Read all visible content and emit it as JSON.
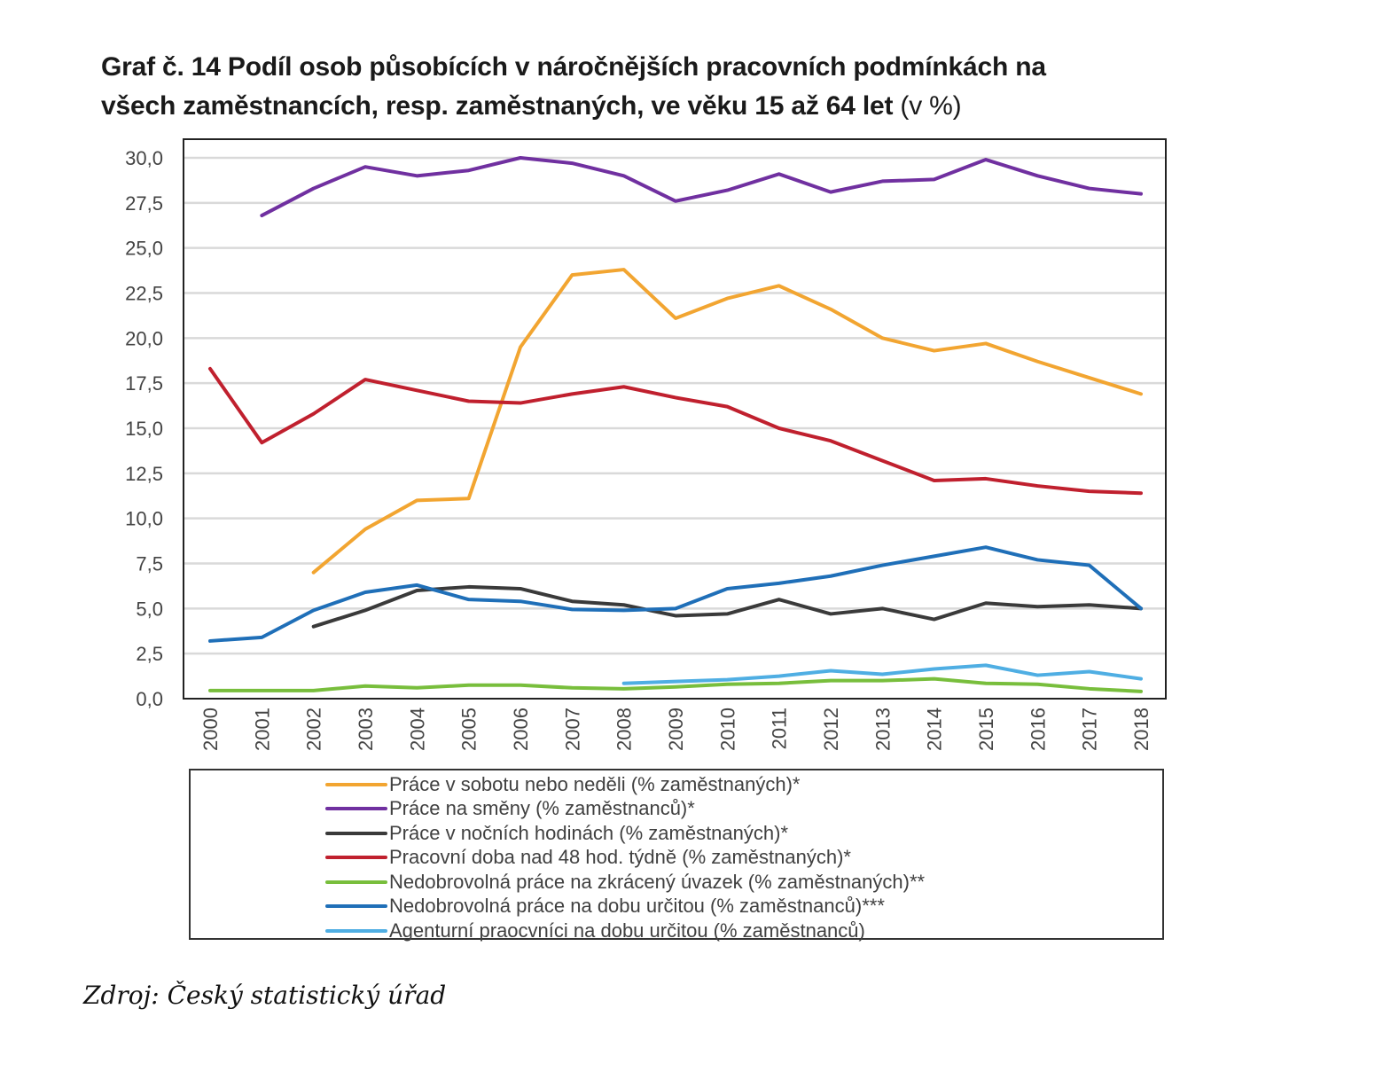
{
  "title": {
    "line1": "Graf č. 14  Podíl osob působících v náročnějších pracovních podmínkách na",
    "line2_bold": "všech zaměstnancích, resp. zaměstnaných, ve věku 15 až 64 let",
    "line2_unit": "(v %)"
  },
  "source": "Zdroj: Český statistický úřad",
  "chart_data": {
    "type": "line",
    "title": "Graf č. 14  Podíl osob působících v náročnějších pracovních podmínkách na všech zaměstnancích, resp. zaměstnaných, ve věku 15 až 64 let (v %)",
    "xlabel": "",
    "ylabel": "",
    "x": [
      "2000",
      "2001",
      "2002",
      "2003",
      "2004",
      "2005",
      "2006",
      "2007",
      "2008",
      "2009",
      "2010",
      "2011",
      "2012",
      "2013",
      "2014",
      "2015",
      "2016",
      "2017",
      "2018"
    ],
    "ylim": [
      0,
      30
    ],
    "yticks": [
      "0,0",
      "2,5",
      "5,0",
      "7,5",
      "10,0",
      "12,5",
      "15,0",
      "17,5",
      "20,0",
      "22,5",
      "25,0",
      "27,5",
      "30,0"
    ],
    "ytick_values": [
      0,
      2.5,
      5,
      7.5,
      10,
      12.5,
      15,
      17.5,
      20,
      22.5,
      25,
      27.5,
      30
    ],
    "grid": "horizontal",
    "legend_position": "bottom",
    "series": [
      {
        "name": "Práce v sobotu nebo neděli (% zaměstnaných)*",
        "color": "#F2A531",
        "values": [
          null,
          null,
          7.0,
          9.4,
          11.0,
          11.1,
          19.5,
          23.5,
          23.8,
          21.1,
          22.2,
          22.9,
          21.6,
          20.0,
          19.3,
          19.7,
          18.7,
          17.8,
          16.9
        ]
      },
      {
        "name": "Práce na směny (% zaměstnanců)*",
        "color": "#7030A0",
        "values": [
          null,
          26.8,
          28.3,
          29.5,
          29.0,
          29.3,
          30.0,
          29.7,
          29.0,
          27.6,
          28.2,
          29.1,
          28.1,
          28.7,
          28.8,
          29.9,
          29.0,
          28.3,
          28.0
        ]
      },
      {
        "name": "Práce v nočních hodinách (% zaměstnaných)*",
        "color": "#3A3A3A",
        "values": [
          null,
          null,
          4.0,
          4.9,
          6.0,
          6.2,
          6.1,
          5.4,
          5.2,
          4.6,
          4.7,
          5.5,
          4.7,
          5.0,
          4.4,
          5.3,
          5.1,
          5.2,
          5.0
        ]
      },
      {
        "name": "Pracovní doba nad 48 hod. týdně (% zaměstnaných)*",
        "color": "#C0202E",
        "values": [
          18.3,
          14.2,
          15.8,
          17.7,
          17.1,
          16.5,
          16.4,
          16.9,
          17.3,
          16.7,
          16.2,
          15.0,
          14.3,
          13.2,
          12.1,
          12.2,
          11.8,
          11.5,
          11.4
        ]
      },
      {
        "name": "Nedobrovolná práce na zkrácený úvazek (% zaměstnaných)**",
        "color": "#78BE3C",
        "values": [
          0.45,
          0.45,
          0.45,
          0.7,
          0.6,
          0.75,
          0.75,
          0.6,
          0.55,
          0.65,
          0.8,
          0.85,
          1.0,
          1.0,
          1.1,
          0.85,
          0.8,
          0.55,
          0.4
        ]
      },
      {
        "name": "Nedobrovolná práce na dobu určitou (% zaměstnanců)***",
        "color": "#1F6FB8",
        "values": [
          3.2,
          3.4,
          4.9,
          5.9,
          6.3,
          5.5,
          5.4,
          4.95,
          4.9,
          5.0,
          6.1,
          6.4,
          6.8,
          7.4,
          7.9,
          8.4,
          7.7,
          7.4,
          5.0
        ]
      },
      {
        "name": "Agenturní praocvníci na dobu určitou (% zaměstnanců)",
        "color": "#4FAEE3",
        "values": [
          null,
          null,
          null,
          null,
          null,
          null,
          null,
          null,
          0.85,
          0.95,
          1.05,
          1.25,
          1.55,
          1.35,
          1.65,
          1.85,
          1.3,
          1.5,
          1.1
        ]
      }
    ]
  }
}
